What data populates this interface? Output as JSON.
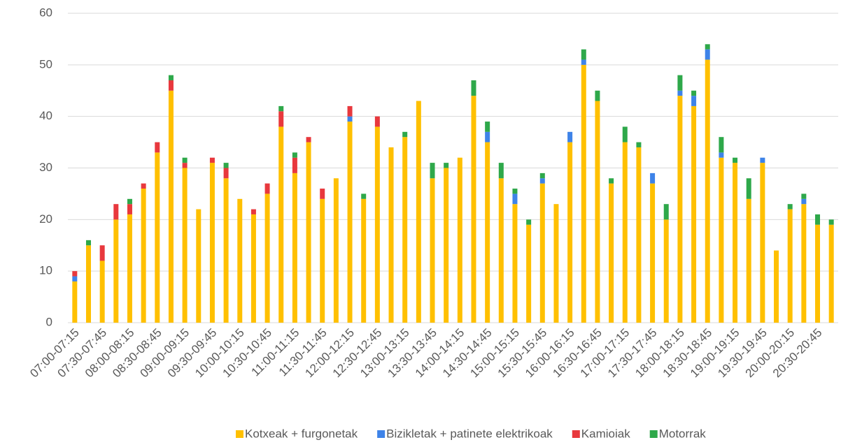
{
  "chart_data": {
    "type": "stacked_bar",
    "categories": [
      "07:00-07:15",
      null,
      "07:30-07:45",
      null,
      "08:00-08:15",
      null,
      "08:30-08:45",
      null,
      "09:00-09:15",
      null,
      "09:30-09:45",
      null,
      "10:00-10:15",
      null,
      "10:30-10:45",
      null,
      "11:00-11:15",
      null,
      "11:30-11:45",
      null,
      "12:00-12:15",
      null,
      "12:30-12:45",
      null,
      "13:00-13:15",
      null,
      "13:30-13:45",
      null,
      "14:00-14:15",
      null,
      "14:30-14:45",
      null,
      "15:00-15:15",
      null,
      "15:30-15:45",
      null,
      "16:00-16:15",
      null,
      "16:30-16:45",
      null,
      "17:00-17:15",
      null,
      "17:30-17:45",
      null,
      "18:00-18:15",
      null,
      "18:30-18:45",
      null,
      "19:00-19:15",
      null,
      "19:30-19:45",
      null,
      "20:00-20:15",
      null,
      "20:30-20:45",
      null
    ],
    "series": [
      {
        "name": "Kotxeak + furgonetak",
        "color": "#FFC000",
        "values": [
          8,
          15,
          12,
          20,
          21,
          26,
          33,
          45,
          30,
          22,
          31,
          28,
          24,
          21,
          25,
          38,
          29,
          35,
          24,
          28,
          39,
          24,
          38,
          34,
          36,
          43,
          28,
          30,
          32,
          44,
          35,
          28,
          23,
          19,
          27,
          23,
          35,
          50,
          43,
          27,
          35,
          34,
          27,
          20,
          44,
          42,
          51,
          32,
          31,
          24,
          31,
          14,
          22,
          23,
          19,
          19
        ]
      },
      {
        "name": "Bizikletak + patinete elektrikoak",
        "color": "#3E83E8",
        "values": [
          1,
          0,
          0,
          0,
          0,
          0,
          0,
          0,
          0,
          0,
          0,
          0,
          0,
          0,
          0,
          0,
          0,
          0,
          0,
          0,
          1,
          0,
          0,
          0,
          0,
          0,
          0,
          0,
          0,
          0,
          2,
          0,
          2,
          0,
          1,
          0,
          2,
          1,
          0,
          0,
          0,
          0,
          2,
          0,
          1,
          2,
          2,
          1,
          0,
          0,
          1,
          0,
          0,
          1,
          0,
          0
        ]
      },
      {
        "name": "Kamioiak",
        "color": "#E8383D",
        "values": [
          1,
          0,
          3,
          3,
          2,
          1,
          2,
          2,
          1,
          0,
          1,
          2,
          0,
          1,
          2,
          3,
          3,
          1,
          2,
          0,
          2,
          0,
          2,
          0,
          0,
          0,
          0,
          0,
          0,
          0,
          0,
          0,
          0,
          0,
          0,
          0,
          0,
          0,
          0,
          0,
          0,
          0,
          0,
          0,
          0,
          0,
          0,
          0,
          0,
          0,
          0,
          0,
          0,
          0,
          0,
          0
        ]
      },
      {
        "name": "Motorrak",
        "color": "#2EA84A",
        "values": [
          0,
          1,
          0,
          0,
          1,
          0,
          0,
          1,
          1,
          0,
          0,
          1,
          0,
          0,
          0,
          1,
          1,
          0,
          0,
          0,
          0,
          1,
          0,
          0,
          1,
          0,
          3,
          1,
          0,
          3,
          2,
          3,
          1,
          1,
          1,
          0,
          0,
          2,
          2,
          1,
          3,
          1,
          0,
          3,
          3,
          1,
          1,
          3,
          1,
          4,
          0,
          0,
          1,
          1,
          2,
          1
        ]
      }
    ],
    "ylim": [
      0,
      60
    ],
    "yticks": [
      0,
      10,
      20,
      30,
      40,
      50,
      60
    ],
    "grid": true,
    "legend": "bottom"
  }
}
